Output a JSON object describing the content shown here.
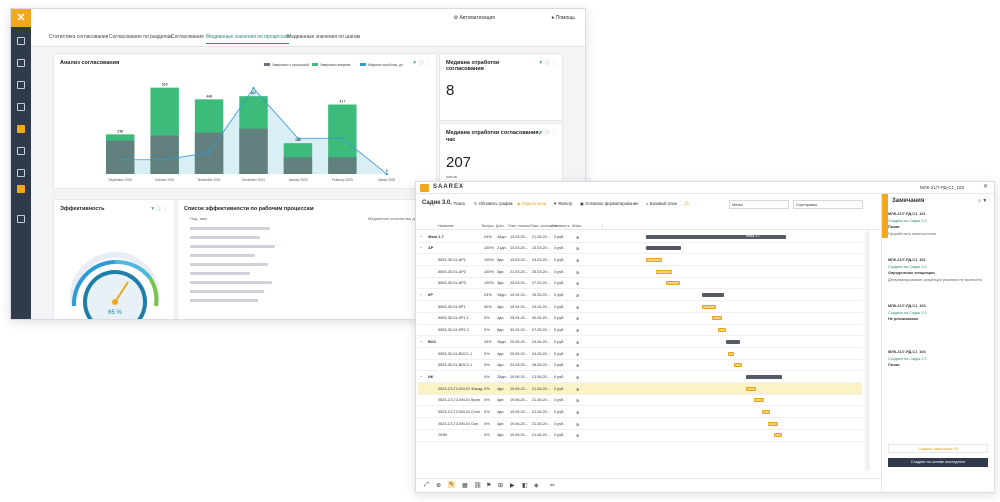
{
  "dashboard": {
    "header": {
      "automation_label": "Автоматизация",
      "help_label": "Помощь"
    },
    "tabs": [
      {
        "label": "Статистика согласования"
      },
      {
        "label": "Согласование по разделам"
      },
      {
        "label": "Согласование"
      },
      {
        "label": "Медианные значения по процессам"
      },
      {
        "label": "Медианные значения по шагам"
      }
    ],
    "analysis_card": {
      "title": "Анализ согласования"
    },
    "median_card": {
      "title": "Медиана отработки согласования",
      "value": "8"
    },
    "median_hours_card": {
      "title": "Медиана отработки согласования, час",
      "value": "207",
      "unit": "часов"
    },
    "efficiency_card": {
      "title": "Эффективность",
      "gauge_value": "65 %",
      "gauge_fraction": 0.65
    },
    "efficiency_list": {
      "title": "Список эффективности по рабочим процессам",
      "col1": "Под. имя",
      "col2": "Медианное количество дн"
    }
  },
  "chart_data": {
    "type": "bar",
    "categories": [
      "September 2024",
      "October 2024",
      "November 2024",
      "December 2024",
      "January 2025",
      "February 2025",
      "March 2025"
    ],
    "series": [
      {
        "name": "Завершено с просрочкой",
        "values": [
          200,
          231,
          248,
          272,
          100,
          100,
          0
        ]
      },
      {
        "name": "Завершено вовремя",
        "values": [
          238,
          518,
          448,
          467,
          185,
          417,
          0
        ]
      }
    ],
    "line_series": {
      "name": "Медиана отработки, дн",
      "values": [
        2,
        2,
        3,
        12,
        5,
        5,
        0
      ]
    },
    "legend": "top-right",
    "bar_labels": [
      "238",
      "518",
      "448",
      "467",
      "185",
      "417",
      "0"
    ]
  },
  "gantt": {
    "logo": "SAAREX",
    "title": "Садик 3.0",
    "toolbar": [
      "Поиск",
      "Обновить график",
      "Скрыть вехи",
      "Фильтр",
      "Условное форматирование",
      "Базовый план"
    ],
    "columns": [
      "Название",
      "Выпуск",
      "Длит.",
      "План. начало",
      "План. окончание",
      "Стоимость",
      "Инфо"
    ],
    "rows": [
      {
        "name": "Фаза 1.7",
        "pct": "24%",
        "dur": "45дн.",
        "start": "13.03.20...",
        "end": "21.06.20...",
        "cost": "0 руб."
      },
      {
        "name": "АР",
        "pct": "100%",
        "dur": "21дн.",
        "start": "13.03.20...",
        "end": "13.03.20...",
        "cost": "0 руб."
      },
      {
        "name": "5593-30-01-АР1",
        "pct": "100%",
        "dur": "9дн.",
        "start": "13.03.20...",
        "end": "24.03.20...",
        "cost": "0 руб."
      },
      {
        "name": "5593-30-01-АР2",
        "pct": "100%",
        "dur": "5дн.",
        "start": "21.03.20...",
        "end": "25.03.20...",
        "cost": "0 руб."
      },
      {
        "name": "5593-30-01-АР3",
        "pct": "100%",
        "dur": "3дн.",
        "start": "25.03.20...",
        "end": "27.03.20...",
        "cost": "0 руб."
      },
      {
        "name": "КР",
        "pct": "24%",
        "dur": "19дн.",
        "start": "19.04.20...",
        "end": "15.05.20...",
        "cost": "0 руб."
      },
      {
        "name": "5593-30-01-КР1",
        "pct": "30%",
        "dur": "4дн.",
        "start": "19.04.20...",
        "end": "24.04.20...",
        "cost": "0 руб."
      },
      {
        "name": "5593-30-01-КР1.1",
        "pct": "0%",
        "dur": "4дн.",
        "start": "25.04.20...",
        "end": "30.04.20...",
        "cost": "0 руб."
      },
      {
        "name": "5593-30-01-КР2.2",
        "pct": "0%",
        "dur": "5дн.",
        "start": "30.04.20...",
        "end": "07.05.20...",
        "cost": "0 руб."
      },
      {
        "name": "ВОС",
        "pct": "33%",
        "dur": "26дн.",
        "start": "20.05.20...",
        "end": "24.06.20...",
        "cost": "0 руб."
      },
      {
        "name": "5593-30-01-ВОС1.1",
        "pct": "0%",
        "dur": "4дн.",
        "start": "20.05.20...",
        "end": "24.05.20...",
        "cost": "0 руб."
      },
      {
        "name": "5593-30-01-ВОС2.1",
        "pct": "0%",
        "dur": "4дн.",
        "start": "24.05.20...",
        "end": "28.05.20...",
        "cost": "0 руб."
      },
      {
        "name": "ИК",
        "pct": "0%",
        "dur": "25дн.",
        "start": "19.06.20...",
        "end": "21.06.20...",
        "cost": "0 руб."
      },
      {
        "name": "0523-С3-Г2-КМ-01 Фасад",
        "pct": "0%",
        "dur": "4дн.",
        "start": "19.06.20...",
        "end": "21.06.20...",
        "cost": "0 руб."
      },
      {
        "name": "0523-С3-Г2-КМ-01 Кров",
        "pct": "0%",
        "dur": "4дн.",
        "start": "19.06.20...",
        "end": "21.06.20...",
        "cost": "0 руб."
      },
      {
        "name": "0523-С3-Г2-КМ-01 Стил",
        "pct": "0%",
        "dur": "4дн.",
        "start": "19.06.20...",
        "end": "21.06.20...",
        "cost": "0 руб."
      },
      {
        "name": "0523-С3-Г2-КМ-01 Окн",
        "pct": "0%",
        "dur": "4дн.",
        "start": "19.06.20...",
        "end": "21.06.20...",
        "cost": "0 руб."
      },
      {
        "name": "ЭОМ",
        "pct": "0%",
        "dur": "4дн.",
        "start": "19.06.20...",
        "end": "21.06.20...",
        "cost": "0 руб."
      }
    ],
    "phase_label": "Фаза 1.7",
    "notes": {
      "title": "Замечания",
      "items": [
        {
          "code": "МЛК-21/7-РД-С1_101",
          "status": "Создано на Садик 2.0",
          "label": "Позже",
          "text": "Проработать наличие/поле"
        },
        {
          "code": "МЛК-21/7-РД-С1_102",
          "status": "Создано на Садик 2.0",
          "label": "Определение концепции",
          "text": "Детерминирование концепции решения не вынесено"
        },
        {
          "code": "МЛК-21/7-РД-С1_103",
          "status": "Создано на Садик 2.0",
          "label": "Не реализовано",
          "text": ""
        },
        {
          "code": "МЛК-21/7-РД-С1_104",
          "status": "Создано на Садик 2.0",
          "label": "Позже",
          "text": ""
        }
      ],
      "btn1": "Создать замечание (0)",
      "btn2": "Создать на основе последнего"
    },
    "select1": "Метки",
    "select2": "Сортировка",
    "top_right": "МЛК-21/7-РД-С1_103"
  }
}
